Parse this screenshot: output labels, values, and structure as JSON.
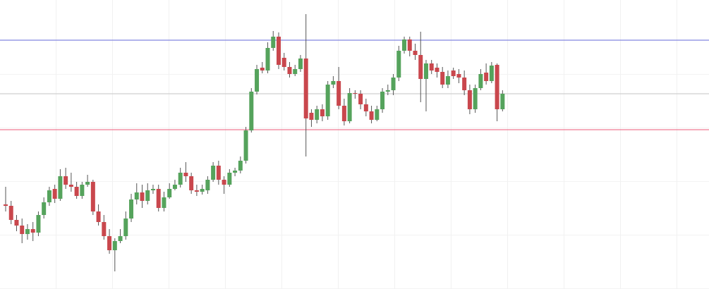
{
  "chart_data": {
    "type": "candlestick",
    "ylim": [
      0,
      410
    ],
    "up_color": "#55a35c",
    "down_color": "#c9474d",
    "levels": [
      {
        "value": 353,
        "color": "#8286e0"
      },
      {
        "value": 277,
        "color": "#cfcfcf"
      },
      {
        "value": 226,
        "color": "#f07a92"
      }
    ],
    "open": [
      120,
      118,
      98,
      90,
      78,
      85,
      80,
      105,
      123,
      142,
      128,
      160,
      148,
      145,
      132,
      148,
      152,
      110,
      95,
      75,
      55,
      68,
      75,
      100,
      127,
      137,
      125,
      140,
      142,
      115,
      130,
      142,
      148,
      165,
      160,
      140,
      138,
      140,
      155,
      175,
      155,
      148,
      165,
      168,
      182,
      225,
      280,
      314,
      310,
      342,
      358,
      328,
      315,
      305,
      312,
      327,
      250,
      240,
      255,
      245,
      290,
      295,
      260,
      238,
      278,
      277,
      262,
      252,
      240,
      255,
      280,
      282,
      300,
      338,
      354,
      338,
      332,
      298,
      320,
      314,
      308,
      290,
      310,
      305,
      300,
      282,
      255,
      285,
      307,
      295,
      318,
      255
    ],
    "high": [
      145,
      125,
      105,
      100,
      92,
      95,
      110,
      130,
      145,
      148,
      170,
      172,
      165,
      152,
      152,
      162,
      155,
      120,
      105,
      85,
      72,
      85,
      110,
      135,
      150,
      148,
      150,
      148,
      148,
      138,
      150,
      155,
      172,
      180,
      165,
      148,
      148,
      160,
      180,
      182,
      160,
      170,
      172,
      188,
      230,
      285,
      318,
      322,
      350,
      366,
      364,
      335,
      322,
      318,
      332,
      390,
      255,
      260,
      262,
      295,
      302,
      315,
      270,
      285,
      282,
      282,
      270,
      260,
      260,
      285,
      290,
      305,
      345,
      358,
      358,
      348,
      365,
      325,
      325,
      320,
      315,
      310,
      314,
      312,
      310,
      290,
      290,
      312,
      320,
      322,
      320,
      282
    ],
    "low": [
      110,
      92,
      82,
      65,
      70,
      68,
      75,
      100,
      118,
      122,
      125,
      142,
      138,
      128,
      128,
      145,
      105,
      90,
      70,
      50,
      25,
      65,
      70,
      95,
      120,
      115,
      120,
      135,
      110,
      110,
      128,
      140,
      144,
      152,
      135,
      132,
      134,
      135,
      152,
      148,
      135,
      145,
      160,
      164,
      178,
      222,
      276,
      306,
      306,
      338,
      312,
      310,
      300,
      302,
      308,
      188,
      230,
      235,
      238,
      240,
      285,
      255,
      232,
      235,
      270,
      255,
      245,
      235,
      238,
      250,
      275,
      275,
      295,
      334,
      330,
      325,
      265,
      252,
      305,
      300,
      285,
      285,
      298,
      292,
      275,
      248,
      250,
      282,
      290,
      292,
      238,
      252
    ],
    "close": [
      118,
      98,
      90,
      78,
      85,
      80,
      105,
      123,
      140,
      128,
      160,
      148,
      145,
      132,
      148,
      152,
      110,
      95,
      75,
      55,
      68,
      75,
      100,
      127,
      137,
      125,
      140,
      142,
      115,
      130,
      142,
      148,
      165,
      160,
      140,
      138,
      142,
      155,
      175,
      155,
      148,
      165,
      168,
      182,
      225,
      280,
      312,
      310,
      342,
      358,
      318,
      315,
      305,
      312,
      327,
      242,
      240,
      255,
      245,
      290,
      295,
      260,
      238,
      278,
      277,
      262,
      252,
      240,
      255,
      280,
      282,
      300,
      338,
      354,
      338,
      332,
      298,
      320,
      310,
      308,
      290,
      302,
      302,
      300,
      282,
      255,
      285,
      305,
      295,
      317,
      255,
      277
    ]
  }
}
